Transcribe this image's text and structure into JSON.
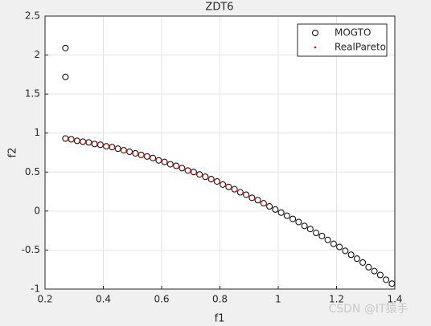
{
  "chart_data": {
    "type": "scatter",
    "title": "ZDT6",
    "x_label": "f1",
    "y_label": "f2",
    "xlim": [
      0.2,
      1.4
    ],
    "ylim": [
      -1,
      2.5
    ],
    "xticks": [
      0.2,
      0.4,
      0.6,
      0.8,
      1,
      1.2,
      1.4
    ],
    "yticks": [
      -1,
      -0.5,
      0,
      0.5,
      1,
      1.5,
      2,
      2.5
    ],
    "grid": true,
    "legend_position": "northeast",
    "series": [
      {
        "name": "MOGTO",
        "color": "#000000",
        "marker": "circle",
        "x": [
          0.27,
          0.27,
          0.27,
          0.29,
          0.31,
          0.33,
          0.35,
          0.37,
          0.39,
          0.41,
          0.43,
          0.45,
          0.47,
          0.49,
          0.51,
          0.53,
          0.55,
          0.57,
          0.59,
          0.61,
          0.63,
          0.65,
          0.67,
          0.69,
          0.71,
          0.73,
          0.75,
          0.77,
          0.79,
          0.81,
          0.83,
          0.85,
          0.87,
          0.89,
          0.91,
          0.93,
          0.95,
          0.97,
          0.99,
          1.01,
          1.03,
          1.05,
          1.07,
          1.09,
          1.11,
          1.13,
          1.15,
          1.17,
          1.19,
          1.21,
          1.23,
          1.25,
          1.27,
          1.29,
          1.31,
          1.33,
          1.35,
          1.37,
          1.39
        ],
        "values": [
          2.09,
          1.72,
          0.93,
          0.92,
          0.9,
          0.89,
          0.88,
          0.86,
          0.85,
          0.83,
          0.82,
          0.8,
          0.78,
          0.76,
          0.74,
          0.72,
          0.7,
          0.68,
          0.65,
          0.63,
          0.6,
          0.58,
          0.55,
          0.52,
          0.5,
          0.47,
          0.44,
          0.41,
          0.38,
          0.34,
          0.31,
          0.28,
          0.24,
          0.21,
          0.17,
          0.14,
          0.1,
          0.06,
          0.02,
          -0.02,
          -0.06,
          -0.1,
          -0.14,
          -0.19,
          -0.23,
          -0.28,
          -0.32,
          -0.37,
          -0.42,
          -0.46,
          -0.51,
          -0.56,
          -0.61,
          -0.66,
          -0.72,
          -0.77,
          -0.82,
          -0.88,
          -0.93
        ]
      },
      {
        "name": "RealPareto",
        "color": "#ff0000",
        "marker": "dot",
        "x": [
          0.28,
          0.3,
          0.32,
          0.34,
          0.36,
          0.38,
          0.4,
          0.42,
          0.44,
          0.46,
          0.48,
          0.5,
          0.52,
          0.54,
          0.56,
          0.58,
          0.6,
          0.62,
          0.64,
          0.66,
          0.68,
          0.7,
          0.72,
          0.74,
          0.76,
          0.78,
          0.8,
          0.82,
          0.84,
          0.86,
          0.88,
          0.9,
          0.92,
          0.94,
          0.96
        ],
        "values": [
          0.92,
          0.91,
          0.9,
          0.88,
          0.87,
          0.86,
          0.84,
          0.82,
          0.81,
          0.79,
          0.77,
          0.75,
          0.73,
          0.71,
          0.69,
          0.66,
          0.64,
          0.62,
          0.59,
          0.56,
          0.54,
          0.51,
          0.48,
          0.45,
          0.42,
          0.39,
          0.36,
          0.33,
          0.29,
          0.26,
          0.23,
          0.19,
          0.15,
          0.12,
          0.08
        ]
      }
    ],
    "watermark": "CSDN @IT猿手"
  }
}
